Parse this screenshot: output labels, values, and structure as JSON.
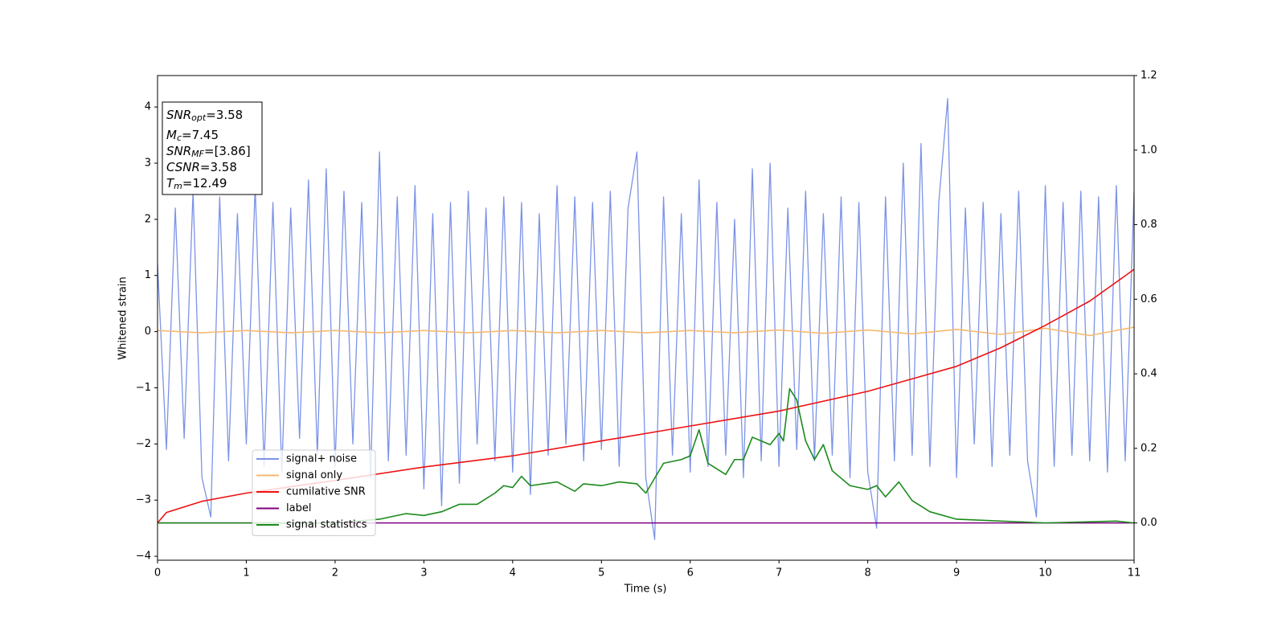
{
  "chart_data": {
    "type": "line",
    "xlabel": "Time (s)",
    "ylabel": "Whitened strain",
    "xlim": [
      0,
      11
    ],
    "xticks": [
      0,
      1,
      2,
      3,
      4,
      5,
      6,
      7,
      8,
      9,
      10,
      11
    ],
    "ylim": [
      -4.07,
      4.56
    ],
    "yticks": [
      {
        "value": -4,
        "label": "−4"
      },
      {
        "value": -3,
        "label": "−3"
      },
      {
        "value": -2,
        "label": "−2"
      },
      {
        "value": -1,
        "label": "−1"
      },
      0,
      1,
      2,
      3,
      4
    ],
    "y2lim": [
      -0.1,
      1.2
    ],
    "y2ticks": [
      {
        "value": 0,
        "label": "0.0"
      },
      {
        "value": 0.2,
        "label": "0.2"
      },
      {
        "value": 0.4,
        "label": "0.4"
      },
      {
        "value": 0.6,
        "label": "0.6"
      },
      {
        "value": 0.8,
        "label": "0.8"
      },
      {
        "value": 1,
        "label": "1.0"
      },
      {
        "value": 1.2,
        "label": "1.2"
      }
    ],
    "legend": "lower left",
    "annotation": [
      {
        "base": "SNR",
        "sub": "opt",
        "text": "=3.58"
      },
      {
        "base": "M",
        "sub": "c",
        "text": "=7.45"
      },
      {
        "base": "SNR",
        "sub": "MF",
        "text": "=[3.86]"
      },
      {
        "base": "CSNR",
        "text": "=3.58"
      },
      {
        "base": "T",
        "sub": "m",
        "text": "=12.49"
      }
    ],
    "series": [
      {
        "name": "signal+ noise",
        "color": "#7b93e6",
        "x": [
          0,
          0.1,
          0.2,
          0.3,
          0.4,
          0.5,
          0.6,
          0.7,
          0.8,
          0.9,
          1,
          1.1,
          1.2,
          1.3,
          1.4,
          1.5,
          1.6,
          1.7,
          1.8,
          1.9,
          2,
          2.1,
          2.2,
          2.3,
          2.4,
          2.5,
          2.6,
          2.7,
          2.8,
          2.9,
          3,
          3.1,
          3.2,
          3.3,
          3.4,
          3.5,
          3.6,
          3.7,
          3.8,
          3.9,
          4,
          4.1,
          4.2,
          4.3,
          4.4,
          4.5,
          4.6,
          4.7,
          4.8,
          4.9,
          5,
          5.1,
          5.2,
          5.3,
          5.4,
          5.5,
          5.6,
          5.7,
          5.8,
          5.9,
          6,
          6.1,
          6.2,
          6.3,
          6.4,
          6.5,
          6.6,
          6.7,
          6.8,
          6.9,
          7,
          7.1,
          7.2,
          7.3,
          7.4,
          7.5,
          7.6,
          7.7,
          7.8,
          7.9,
          8,
          8.1,
          8.2,
          8.3,
          8.4,
          8.5,
          8.6,
          8.7,
          8.8,
          8.9,
          9,
          9.1,
          9.2,
          9.3,
          9.4,
          9.5,
          9.6,
          9.7,
          9.8,
          9.9,
          10,
          10.1,
          10.2,
          10.3,
          10.4,
          10.5,
          10.6,
          10.7,
          10.8,
          10.9,
          11
        ],
        "values": [
          1.2,
          -2.1,
          2.2,
          -1.9,
          2.5,
          -2.6,
          -3.3,
          2.4,
          -2.3,
          2.1,
          -2.0,
          2.6,
          -2.4,
          2.3,
          -2.5,
          2.2,
          -1.9,
          2.7,
          -2.2,
          2.9,
          -2.4,
          2.5,
          -2.0,
          2.3,
          -2.6,
          3.2,
          -2.3,
          2.4,
          -2.2,
          2.6,
          -2.8,
          2.1,
          -3.1,
          2.3,
          -2.7,
          2.5,
          -2.0,
          2.2,
          -2.3,
          2.4,
          -2.5,
          2.3,
          -2.9,
          2.1,
          -2.2,
          2.6,
          -2.0,
          2.4,
          -2.3,
          2.3,
          -2.1,
          2.5,
          -2.4,
          2.2,
          3.2,
          -2.6,
          -3.7,
          2.4,
          -2.2,
          2.1,
          -2.5,
          2.7,
          -2.4,
          2.3,
          -2.2,
          2.0,
          -2.6,
          2.9,
          -2.3,
          3.0,
          -2.4,
          2.2,
          -2.1,
          2.5,
          -2.3,
          2.1,
          -2.2,
          2.4,
          -2.6,
          2.3,
          -2.5,
          -3.5,
          2.4,
          -2.3,
          3.0,
          -2.2,
          3.35,
          -2.4,
          2.3,
          4.15,
          -2.6,
          2.2,
          -2.0,
          2.3,
          -2.4,
          2.1,
          -2.2,
          2.5,
          -2.3,
          -3.3,
          2.6,
          -2.4,
          2.3,
          -2.2,
          2.5,
          -2.3,
          2.4,
          -2.5,
          2.6,
          -2.3,
          2.5
        ]
      },
      {
        "name": "signal only",
        "color": "#f5b971",
        "x": [
          0,
          0.5,
          1,
          1.5,
          2,
          2.5,
          3,
          3.5,
          4,
          4.5,
          5,
          5.5,
          6,
          6.5,
          7,
          7.5,
          8,
          8.5,
          9,
          9.5,
          10,
          10.5,
          11
        ],
        "values": [
          0.02,
          -0.02,
          0.02,
          -0.02,
          0.02,
          -0.02,
          0.02,
          -0.02,
          0.02,
          -0.02,
          0.02,
          -0.02,
          0.02,
          -0.02,
          0.03,
          -0.03,
          0.03,
          -0.04,
          0.04,
          -0.05,
          0.06,
          -0.07,
          0.08
        ]
      },
      {
        "name": "cumilative SNR",
        "color": "#ee1111",
        "axis": "y2",
        "x": [
          0,
          0.1,
          0.5,
          1,
          2,
          3,
          4,
          5,
          6,
          7,
          8,
          9,
          9.5,
          10,
          10.5,
          11
        ],
        "values": [
          0,
          0.028,
          0.058,
          0.08,
          0.114,
          0.15,
          0.18,
          0.22,
          0.26,
          0.3,
          0.353,
          0.42,
          0.47,
          0.53,
          0.595,
          0.68
        ]
      },
      {
        "name": "label",
        "color": "#800080",
        "axis": "y2",
        "x": [
          0,
          11
        ],
        "values": [
          0,
          0
        ]
      },
      {
        "name": "signal statistics",
        "color": "#1a8a1a",
        "axis": "y2",
        "x": [
          0,
          1,
          2,
          2.5,
          2.8,
          3,
          3.2,
          3.4,
          3.6,
          3.8,
          3.9,
          4,
          4.1,
          4.2,
          4.5,
          4.7,
          4.8,
          5,
          5.2,
          5.4,
          5.5,
          5.7,
          5.9,
          6,
          6.1,
          6.2,
          6.4,
          6.5,
          6.6,
          6.7,
          6.9,
          7,
          7.05,
          7.12,
          7.2,
          7.3,
          7.4,
          7.5,
          7.6,
          7.8,
          8,
          8.1,
          8.2,
          8.35,
          8.5,
          8.7,
          9,
          10,
          10.8,
          11
        ],
        "values": [
          0,
          0,
          0,
          0.01,
          0.025,
          0.02,
          0.03,
          0.05,
          0.05,
          0.08,
          0.1,
          0.095,
          0.125,
          0.1,
          0.11,
          0.085,
          0.105,
          0.1,
          0.11,
          0.105,
          0.08,
          0.16,
          0.17,
          0.18,
          0.25,
          0.16,
          0.13,
          0.17,
          0.17,
          0.23,
          0.21,
          0.24,
          0.22,
          0.36,
          0.33,
          0.22,
          0.17,
          0.21,
          0.14,
          0.1,
          0.09,
          0.1,
          0.07,
          0.11,
          0.06,
          0.03,
          0.01,
          0,
          0.005,
          0
        ]
      }
    ]
  }
}
